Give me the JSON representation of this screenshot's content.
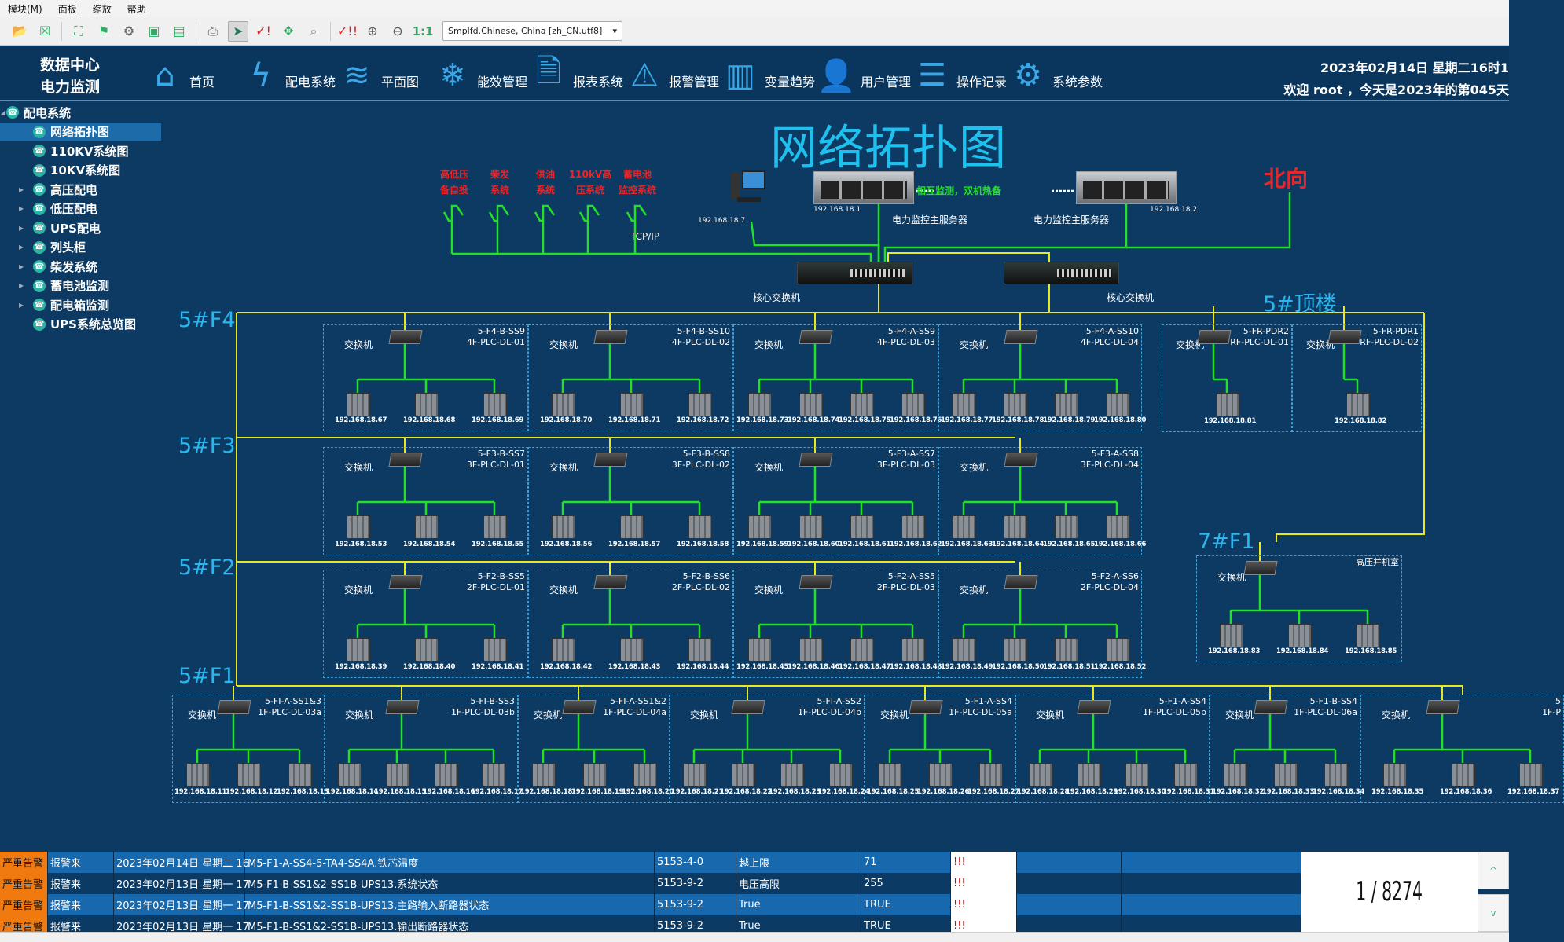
{
  "menu": [
    "模块(M)",
    "面板",
    "缩放",
    "帮助"
  ],
  "toolbar": {
    "icons": [
      "open-folder-icon",
      "close-icon",
      "fullscreen-icon",
      "tree-icon",
      "gear-icon",
      "window-icon",
      "user-window-icon",
      "print-icon",
      "pointer-icon",
      "check-alert-icon",
      "move-icon",
      "search-icon",
      "check-alarm-icon",
      "zoom-in-icon",
      "zoom-out-icon"
    ],
    "zoom_reset": "1:1",
    "language": "Smplfd.Chinese, China [zh_CN.utf8]"
  },
  "header": {
    "brand_line1": "数据中心",
    "brand_line2": "电力监测",
    "nav": [
      {
        "label": "首页",
        "icon": "home-icon"
      },
      {
        "label": "配电系统",
        "icon": "lightning-icon"
      },
      {
        "label": "平面图",
        "icon": "layers-icon"
      },
      {
        "label": "能效管理",
        "icon": "snowflake-icon"
      },
      {
        "label": "报表系统",
        "icon": "report-icon"
      },
      {
        "label": "报警管理",
        "icon": "warning-icon"
      },
      {
        "label": "变量趋势",
        "icon": "chart-icon"
      },
      {
        "label": "用户管理",
        "icon": "user-gear-icon"
      },
      {
        "label": "操作记录",
        "icon": "document-icon"
      },
      {
        "label": "系统参数",
        "icon": "settings-icon"
      }
    ],
    "datetime": "2023年02月14日 星期二16时1",
    "welcome": "欢迎  root      ，今天是2023年的第045天"
  },
  "sidebar": {
    "root": "配电系统",
    "items": [
      {
        "label": "网络拓扑图",
        "selected": true,
        "expandable": false
      },
      {
        "label": "110KV系统图",
        "expandable": false
      },
      {
        "label": "10KV系统图",
        "expandable": false
      },
      {
        "label": "高压配电",
        "expandable": true
      },
      {
        "label": "低压配电",
        "expandable": true
      },
      {
        "label": "UPS配电",
        "expandable": true
      },
      {
        "label": "列头柜",
        "expandable": true
      },
      {
        "label": "柴发系统",
        "expandable": true
      },
      {
        "label": "蓄电池监测",
        "expandable": true
      },
      {
        "label": "配电箱监测",
        "expandable": true
      },
      {
        "label": "UPS系统总览图",
        "expandable": false
      }
    ]
  },
  "topology": {
    "title": "网络拓扑图",
    "external_systems": [
      [
        "高低压",
        "备自投"
      ],
      [
        "柴发",
        "系统"
      ],
      [
        "供油",
        "系统"
      ],
      [
        "110kV高",
        "压系统"
      ],
      [
        "蓄电池",
        "监控系统"
      ]
    ],
    "tcpip": "TCP/IP",
    "workstation_ip": "192.168.18.7",
    "server1_ip": "192.168.18.1",
    "server2_ip": "192.168.18.2",
    "server_label": "电力监控主服务器",
    "hot_standby": "相互监测，双机热备",
    "northbound": "北向",
    "core_switch": "核心交换机",
    "switch_label": "交换机",
    "colors": {
      "bus": "#e8e820",
      "link": "#22e022",
      "northbound": "#e8262a",
      "floor": "#2ab6ee"
    },
    "floors": [
      {
        "label": "5#F4",
        "boxes": [
          {
            "name": "5-F4-B-SS9",
            "plc": "4F-PLC-DL-01",
            "ips": [
              "192.168.18.67",
              "192.168.18.68",
              "192.168.18.69"
            ]
          },
          {
            "name": "5-F4-B-SS10",
            "plc": "4F-PLC-DL-02",
            "ips": [
              "192.168.18.70",
              "192.168.18.71",
              "192.168.18.72"
            ]
          },
          {
            "name": "5-F4-A-SS9",
            "plc": "4F-PLC-DL-03",
            "ips": [
              "192.168.18.73",
              "192.168.18.74",
              "192.168.18.75",
              "192.168.18.76"
            ]
          },
          {
            "name": "5-F4-A-SS10",
            "plc": "4F-PLC-DL-04",
            "ips": [
              "192.168.18.77",
              "192.168.18.78",
              "192.168.18.79",
              "192.168.18.80"
            ]
          }
        ]
      },
      {
        "label": "5#F3",
        "boxes": [
          {
            "name": "5-F3-B-SS7",
            "plc": "3F-PLC-DL-01",
            "ips": [
              "192.168.18.53",
              "192.168.18.54",
              "192.168.18.55"
            ]
          },
          {
            "name": "5-F3-B-SS8",
            "plc": "3F-PLC-DL-02",
            "ips": [
              "192.168.18.56",
              "192.168.18.57",
              "192.168.18.58"
            ]
          },
          {
            "name": "5-F3-A-SS7",
            "plc": "3F-PLC-DL-03",
            "ips": [
              "192.168.18.59",
              "192.168.18.60",
              "192.168.18.61",
              "192.168.18.62"
            ]
          },
          {
            "name": "5-F3-A-SS8",
            "plc": "3F-PLC-DL-04",
            "ips": [
              "192.168.18.63",
              "192.168.18.64",
              "192.168.18.65",
              "192.168.18.66"
            ]
          }
        ]
      },
      {
        "label": "5#F2",
        "boxes": [
          {
            "name": "5-F2-B-SS5",
            "plc": "2F-PLC-DL-01",
            "ips": [
              "192.168.18.39",
              "192.168.18.40",
              "192.168.18.41"
            ]
          },
          {
            "name": "5-F2-B-SS6",
            "plc": "2F-PLC-DL-02",
            "ips": [
              "192.168.18.42",
              "192.168.18.43",
              "192.168.18.44"
            ]
          },
          {
            "name": "5-F2-A-SS5",
            "plc": "2F-PLC-DL-03",
            "ips": [
              "192.168.18.45",
              "192.168.18.46",
              "192.168.18.47",
              "192.168.18.48"
            ]
          },
          {
            "name": "5-F2-A-SS6",
            "plc": "2F-PLC-DL-04",
            "ips": [
              "192.168.18.49",
              "192.168.18.50",
              "192.168.18.51",
              "192.168.18.52"
            ]
          }
        ]
      },
      {
        "label": "5#F1",
        "boxes": [
          {
            "name": "5-FI-A-SS1&3",
            "plc": "1F-PLC-DL-03a",
            "ips": [
              "192.168.18.11",
              "192.168.18.12",
              "192.168.18.13"
            ]
          },
          {
            "name": "5-FI-B-SS3",
            "plc": "1F-PLC-DL-03b",
            "ips": [
              "192.168.18.14",
              "192.168.18.15",
              "192.168.18.16",
              "192.168.18.17"
            ]
          },
          {
            "name": "5-FI-A-SS1&2",
            "plc": "1F-PLC-DL-04a",
            "ips": [
              "192.168.18.18",
              "192.168.18.19",
              "192.168.18.20"
            ]
          },
          {
            "name": "5-FI-A-SS2",
            "plc": "1F-PLC-DL-04b",
            "ips": [
              "192.168.18.21",
              "192.168.18.22",
              "192.168.18.23",
              "192.168.18.24"
            ]
          },
          {
            "name": "5-F1-A-SS4",
            "plc": "1F-PLC-DL-05a",
            "ips": [
              "192.168.18.25",
              "192.168.18.26",
              "192.168.18.27"
            ]
          },
          {
            "name": "5-F1-A-SS4",
            "plc": "1F-PLC-DL-05b",
            "ips": [
              "192.168.18.28",
              "192.168.18.29",
              "192.168.18.30",
              "192.168.18.31"
            ]
          },
          {
            "name": "5-F1-B-SS4",
            "plc": "1F-PLC-DL-06a",
            "ips": [
              "192.168.18.32",
              "192.168.18.33",
              "192.168.18.34"
            ]
          },
          {
            "name": "5",
            "plc": "1F-P",
            "ips": [
              "192.168.18.35",
              "192.168.18.36",
              "192.168.18.37"
            ]
          }
        ]
      },
      {
        "label": "5#顶楼",
        "boxes": [
          {
            "name": "5-FR-PDR2",
            "plc": "RF-PLC-DL-01",
            "ips": [
              "192.168.18.81"
            ]
          },
          {
            "name": "5-FR-PDR1",
            "plc": "RF-PLC-DL-02",
            "ips": [
              "192.168.18.82"
            ]
          }
        ]
      },
      {
        "label": "7#F1",
        "boxes": [
          {
            "name": "高压并机室",
            "plc": "",
            "ips": [
              "192.168.18.83",
              "192.168.18.84",
              "192.168.18.85"
            ]
          }
        ]
      }
    ]
  },
  "alarms": {
    "rows": [
      {
        "severity": "严重告警",
        "type": "报警来",
        "time": "2023年02月14日 星期二 16",
        "variable": "M5-F1-A-SS4-5-TA4-SS4A.铁芯温度",
        "code": "5153-4-0",
        "desc": "越上限",
        "value": "71",
        "flag": "!!!"
      },
      {
        "severity": "严重告警",
        "type": "报警来",
        "time": "2023年02月13日 星期一 17",
        "variable": "M5-F1-B-SS1&2-SS1B-UPS13.系统状态",
        "code": "5153-9-2",
        "desc": "电压高限",
        "value": "255",
        "flag": "!!!"
      },
      {
        "severity": "严重告警",
        "type": "报警来",
        "time": "2023年02月13日 星期一 17",
        "variable": "M5-F1-B-SS1&2-SS1B-UPS13.主路输入断路器状态",
        "code": "5153-9-2",
        "desc": "True",
        "value": "TRUE",
        "flag": "!!!"
      },
      {
        "severity": "严重告警",
        "type": "报警来",
        "time": "2023年02月13日 星期一 17",
        "variable": "M5-F1-B-SS1&2-SS1B-UPS13.输出断路器状态",
        "code": "5153-9-2",
        "desc": "True",
        "value": "TRUE",
        "flag": "!!!"
      }
    ],
    "pager": "1 / 8274",
    "up": "^",
    "down": "v"
  }
}
